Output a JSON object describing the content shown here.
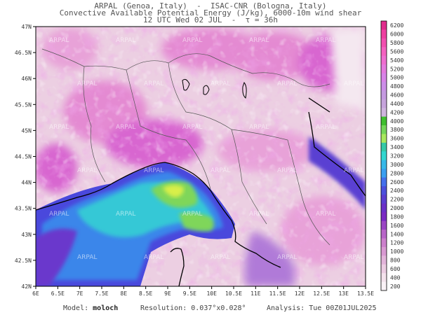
{
  "header": {
    "line1": "ARPAL (Genoa, Italy)  -  ISAC-CNR (Bologna, Italy)",
    "line2": "Convective Available Potential Energy (J/kg), 6000-10m wind shear",
    "line3": "12 UTC Wed 02 JUL  -  τ = 36h"
  },
  "map": {
    "lat_labels": [
      "47N",
      "46.5N",
      "46N",
      "45.5N",
      "45N",
      "44.5N",
      "44N",
      "43.5N",
      "43N",
      "42.5N",
      "42N"
    ],
    "lon_labels": [
      "6E",
      "6.5E",
      "7E",
      "7.5E",
      "8E",
      "8.5E",
      "9E",
      "9.5E",
      "10E",
      "10.5E",
      "11E",
      "11.5E",
      "12E",
      "12.5E",
      "13E",
      "13.5E"
    ],
    "lat_range": [
      42,
      47
    ],
    "lon_range": [
      6,
      13.5
    ],
    "watermark_text": "ARPAL"
  },
  "colorbar": {
    "labels": [
      "6200",
      "6000",
      "5800",
      "5600",
      "5400",
      "5200",
      "5000",
      "4800",
      "4600",
      "4400",
      "4200",
      "4000",
      "3800",
      "3600",
      "3400",
      "3200",
      "3000",
      "2800",
      "2600",
      "2400",
      "2200",
      "2000",
      "1800",
      "1600",
      "1400",
      "1200",
      "1000",
      "800",
      "600",
      "400",
      "200"
    ],
    "colors": [
      "#e02b8c",
      "#ee3fa0",
      "#f24fb0",
      "#f462c0",
      "#ef6ed0",
      "#e57ade",
      "#d884e8",
      "#cc8ee8",
      "#c49ae0",
      "#c6a4dc",
      "#cfb4de",
      "#3fbf2f",
      "#74d65a",
      "#a8e85e",
      "#36c9a8",
      "#34d7d0",
      "#38b8e8",
      "#3a9ff0",
      "#4470ec",
      "#4c50dc",
      "#5a3ed0",
      "#6a30c8",
      "#7a2ac4",
      "#9a46c4",
      "#b866c8",
      "#cc80cc",
      "#d99ad2",
      "#e3b4da",
      "#eccce2",
      "#f4e2ec",
      "#faf2f6"
    ]
  },
  "footer": {
    "model_label": "Model:",
    "model_value": "moloch",
    "resolution_label": "Resolution:",
    "resolution_value": "0.037°x0.028°",
    "analysis_label": "Analysis:",
    "analysis_value": "Tue 00Z01JUL2025"
  },
  "colors": {
    "land_base": "#eccfe2",
    "land_pink": "#e48ad2",
    "land_magenta": "#d866d0",
    "sea_deep": "#5b3fd6",
    "sea_blue": "#3a7fe8",
    "sea_cyan": "#39c3d8",
    "sea_green": "#7fd65a",
    "sea_yellow": "#d8ef4a"
  }
}
